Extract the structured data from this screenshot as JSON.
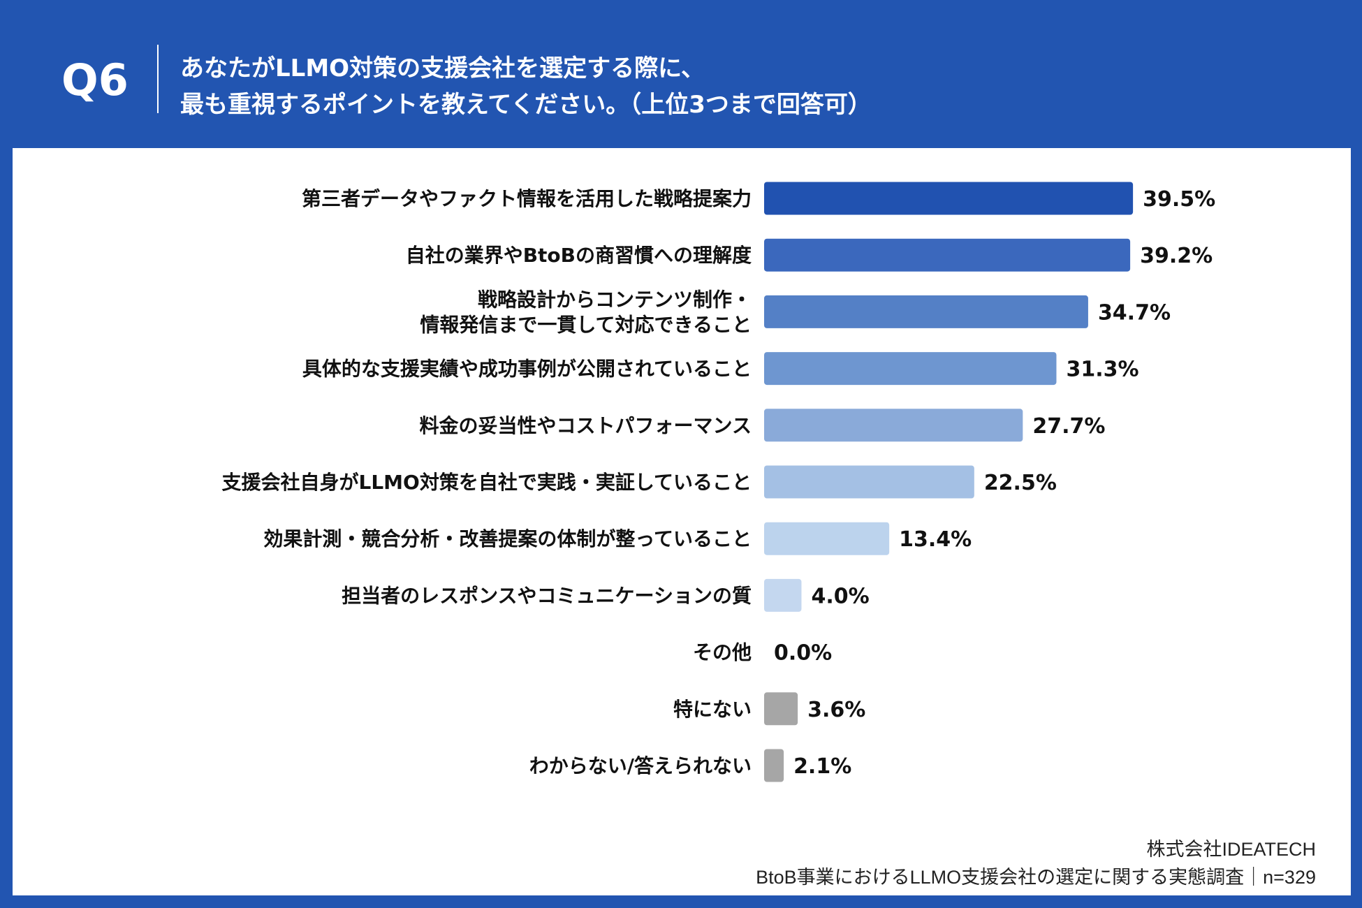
{
  "header": {
    "question_no": "Q6",
    "title_line1": "あなたがLLMO対策の支援会社を選定する際に、",
    "title_line2": "最も重視するポイントを教えてください。（上位3つまで回答可）"
  },
  "chart_data": {
    "type": "bar",
    "orientation": "horizontal",
    "unit": "%",
    "categories": [
      [
        "第三者データやファクト情報を活用した戦略提案力"
      ],
      [
        "自社の業界やBtoBの商習慣への理解度"
      ],
      [
        "戦略設計からコンテンツ制作・",
        "情報発信まで一貫して対応できること"
      ],
      [
        "具体的な支援実績や成功事例が公開されていること"
      ],
      [
        "料金の妥当性やコストパフォーマンス"
      ],
      [
        "支援会社自身がLLMO対策を自社で実践・実証していること"
      ],
      [
        "効果計測・競合分析・改善提案の体制が整っていること"
      ],
      [
        "担当者のレスポンスやコミュニケーションの質"
      ],
      [
        "その他"
      ],
      [
        "特にない"
      ],
      [
        "わからない/答えられない"
      ]
    ],
    "values": [
      39.5,
      39.2,
      34.7,
      31.3,
      27.7,
      22.5,
      13.4,
      4.0,
      0.0,
      3.6,
      2.1
    ],
    "value_labels": [
      "39.5%",
      "39.2%",
      "34.7%",
      "31.3%",
      "27.7%",
      "22.5%",
      "13.4%",
      "4.0%",
      "0.0%",
      "3.6%",
      "2.1%"
    ],
    "colors": [
      "#2152b0",
      "#3b68bd",
      "#5480c6",
      "#6e96d0",
      "#8aaad9",
      "#a4c0e4",
      "#bcd3ed",
      "#c4d7ef",
      "#c4d7ef",
      "#a6a6a6",
      "#a6a6a6"
    ],
    "grid": false,
    "legend": "none"
  },
  "footer": {
    "company": "株式会社IDEATECH",
    "survey": "BtoB事業におけるLLMO支援会社の選定に関する実態調査｜n=329"
  },
  "colors": {
    "background": "#2255b1",
    "panel": "#ffffff"
  }
}
